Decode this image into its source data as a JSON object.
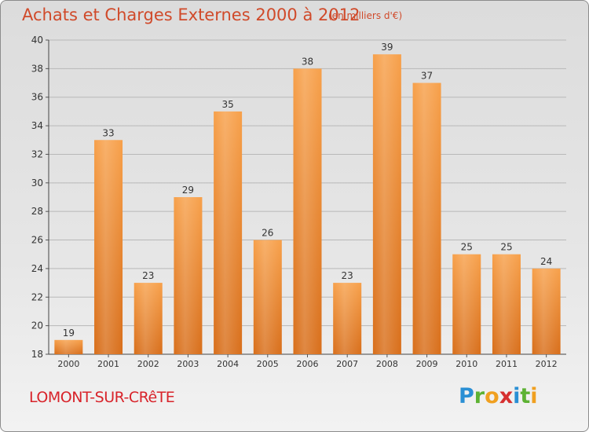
{
  "title": "Achats et Charges Externes 2000 à 2012",
  "subtitle": "(en milliers d'€)",
  "location": "LOMONT-SUR-CRêTE",
  "logo": {
    "letters": [
      "P",
      "r",
      "o",
      "x",
      "i",
      "t",
      "i"
    ],
    "colors": [
      "#2a8fd4",
      "#5db233",
      "#f0a020",
      "#d62f2f",
      "#2a8fd4",
      "#5db233",
      "#f0a020"
    ]
  },
  "chart_data": {
    "type": "bar",
    "categories": [
      "2000",
      "2001",
      "2002",
      "2003",
      "2004",
      "2005",
      "2006",
      "2007",
      "2008",
      "2009",
      "2010",
      "2011",
      "2012"
    ],
    "values": [
      19,
      33,
      23,
      29,
      35,
      26,
      38,
      23,
      39,
      37,
      25,
      25,
      24
    ],
    "ylim": [
      18,
      40
    ],
    "yticks": [
      18,
      20,
      22,
      24,
      26,
      28,
      30,
      32,
      34,
      36,
      38,
      40
    ],
    "grid": true,
    "bar_color": "#f08a2e"
  }
}
